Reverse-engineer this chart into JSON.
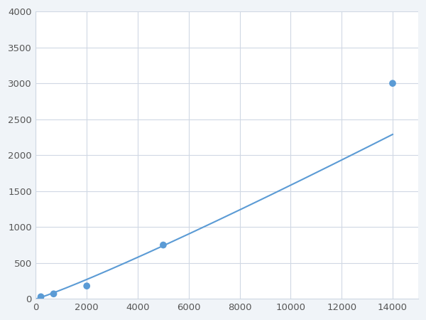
{
  "x_data": [
    200,
    700,
    2000,
    5000,
    14000
  ],
  "y_data": [
    30,
    70,
    180,
    750,
    3000
  ],
  "line_color": "#5b9bd5",
  "marker_color": "#5b9bd5",
  "marker_size": 7,
  "line_width": 1.5,
  "xlim": [
    0,
    15000
  ],
  "ylim": [
    0,
    4000
  ],
  "xticks": [
    0,
    2000,
    4000,
    6000,
    8000,
    10000,
    12000,
    14000
  ],
  "yticks": [
    0,
    500,
    1000,
    1500,
    2000,
    2500,
    3000,
    3500,
    4000
  ],
  "xtick_labels": [
    "0",
    "2000",
    "4000",
    "6000",
    "8000",
    "10000",
    "12000",
    "14000"
  ],
  "ytick_labels": [
    "0",
    "500",
    "1000",
    "1500",
    "2000",
    "2500",
    "3000",
    "3500",
    "4000"
  ],
  "grid_color": "#d0d8e4",
  "background_color": "#ffffff",
  "figure_bg_color": "#f0f4f8",
  "tick_fontsize": 9.5
}
